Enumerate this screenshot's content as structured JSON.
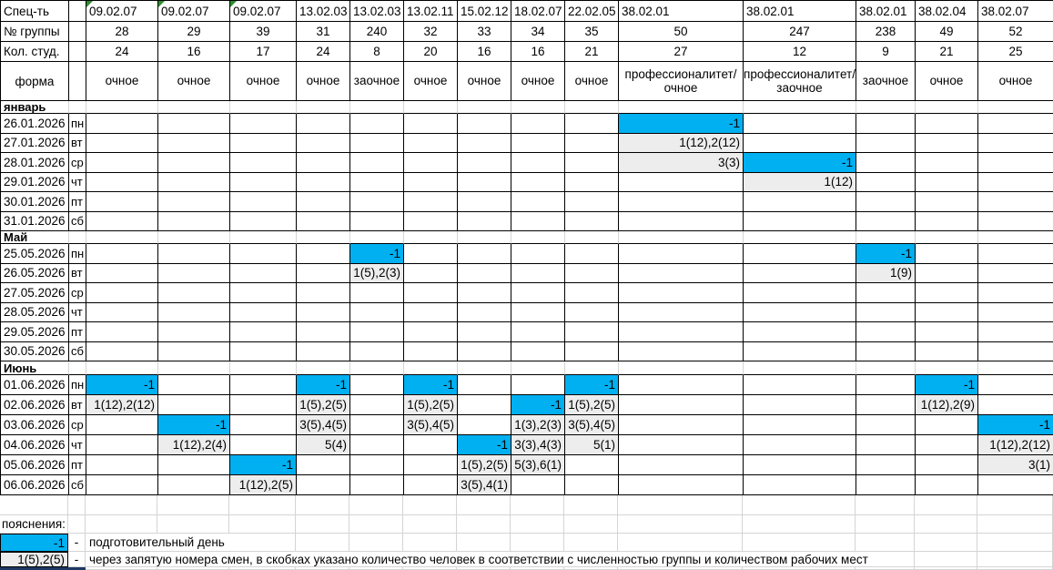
{
  "sheet": {
    "row_labels": {
      "specialty": "Спец-ть",
      "group": "№ группы",
      "students": "Кол. студ.",
      "form": "форма"
    },
    "columns": [
      {
        "code": "09.02.07",
        "group": "28",
        "students": "24",
        "form": "очное",
        "flag": true
      },
      {
        "code": "09.02.07",
        "group": "29",
        "students": "16",
        "form": "очное",
        "flag": true
      },
      {
        "code": "09.02.07",
        "group": "39",
        "students": "17",
        "form": "очное",
        "flag": true
      },
      {
        "code": "13.02.03",
        "group": "31",
        "students": "24",
        "form": "очное",
        "flag": false
      },
      {
        "code": "13.02.03",
        "group": "240",
        "students": "8",
        "form": "заочное",
        "flag": false
      },
      {
        "code": "13.02.11",
        "group": "32",
        "students": "20",
        "form": "очное",
        "flag": false
      },
      {
        "code": "15.02.12",
        "group": "33",
        "students": "16",
        "form": "очное",
        "flag": false
      },
      {
        "code": "18.02.07",
        "group": "34",
        "students": "16",
        "form": "очное",
        "flag": false
      },
      {
        "code": "22.02.05",
        "group": "35",
        "students": "21",
        "form": "очное",
        "flag": false
      },
      {
        "code": "38.02.01",
        "group": "50",
        "students": "27",
        "form": "профессионалитет/очное",
        "flag": false
      },
      {
        "code": "38.02.01",
        "group": "247",
        "students": "12",
        "form": "профессионалитет/заочное",
        "flag": false
      },
      {
        "code": "38.02.01",
        "group": "238",
        "students": "9",
        "form": "заочное",
        "flag": false
      },
      {
        "code": "38.02.04",
        "group": "49",
        "students": "21",
        "form": "очное",
        "flag": false
      },
      {
        "code": "38.02.07",
        "group": "52",
        "students": "25",
        "form": "очное",
        "flag": false
      }
    ],
    "months": [
      {
        "name": "январь",
        "rows": [
          {
            "date": "26.01.2026",
            "day": "пн",
            "cells": {
              "9": {
                "v": "-1",
                "t": "b"
              }
            }
          },
          {
            "date": "27.01.2026",
            "day": "вт",
            "cells": {
              "9": {
                "v": "1(12),2(12)",
                "t": "g"
              }
            }
          },
          {
            "date": "28.01.2026",
            "day": "ср",
            "cells": {
              "9": {
                "v": "3(3)",
                "t": "g"
              },
              "10": {
                "v": "-1",
                "t": "b"
              }
            }
          },
          {
            "date": "29.01.2026",
            "day": "чт",
            "cells": {
              "10": {
                "v": "1(12)",
                "t": "g"
              }
            }
          },
          {
            "date": "30.01.2026",
            "day": "пт",
            "cells": {}
          },
          {
            "date": "31.01.2026",
            "day": "сб",
            "cells": {}
          }
        ]
      },
      {
        "name": "Май",
        "rows": [
          {
            "date": "25.05.2026",
            "day": "пн",
            "cells": {
              "4": {
                "v": "-1",
                "t": "b"
              },
              "11": {
                "v": "-1",
                "t": "b"
              }
            }
          },
          {
            "date": "26.05.2026",
            "day": "вт",
            "cells": {
              "4": {
                "v": "1(5),2(3)",
                "t": "g"
              },
              "11": {
                "v": "1(9)",
                "t": "g"
              }
            }
          },
          {
            "date": "27.05.2026",
            "day": "ср",
            "cells": {}
          },
          {
            "date": "28.05.2026",
            "day": "чт",
            "cells": {}
          },
          {
            "date": "29.05.2026",
            "day": "пт",
            "cells": {}
          },
          {
            "date": "30.05.2026",
            "day": "сб",
            "cells": {}
          }
        ]
      },
      {
        "name": "Июнь",
        "rows": [
          {
            "date": "01.06.2026",
            "day": "пн",
            "cells": {
              "0": {
                "v": "-1",
                "t": "b"
              },
              "3": {
                "v": "-1",
                "t": "b"
              },
              "5": {
                "v": "-1",
                "t": "b"
              },
              "8": {
                "v": "-1",
                "t": "b"
              },
              "12": {
                "v": "-1",
                "t": "b"
              }
            }
          },
          {
            "date": "02.06.2026",
            "day": "вт",
            "cells": {
              "0": {
                "v": "1(12),2(12)",
                "t": "g"
              },
              "3": {
                "v": "1(5),2(5)",
                "t": "g"
              },
              "5": {
                "v": "1(5),2(5)",
                "t": "g"
              },
              "7": {
                "v": "-1",
                "t": "b"
              },
              "8": {
                "v": "1(5),2(5)",
                "t": "g"
              },
              "12": {
                "v": "1(12),2(9)",
                "t": "g"
              }
            }
          },
          {
            "date": "03.06.2026",
            "day": "ср",
            "cells": {
              "1": {
                "v": "-1",
                "t": "b"
              },
              "3": {
                "v": "3(5),4(5)",
                "t": "g"
              },
              "5": {
                "v": "3(5),4(5)",
                "t": "g"
              },
              "7": {
                "v": "1(3),2(3)",
                "t": "g"
              },
              "8": {
                "v": "3(5),4(5)",
                "t": "g"
              },
              "13": {
                "v": "-1",
                "t": "b"
              }
            }
          },
          {
            "date": "04.06.2026",
            "day": "чт",
            "cells": {
              "1": {
                "v": "1(12),2(4)",
                "t": "g"
              },
              "3": {
                "v": "5(4)",
                "t": "g"
              },
              "6": {
                "v": "-1",
                "t": "b"
              },
              "7": {
                "v": "3(3),4(3)",
                "t": "g"
              },
              "8": {
                "v": "5(1)",
                "t": "g"
              },
              "13": {
                "v": "1(12),2(12)",
                "t": "g"
              }
            }
          },
          {
            "date": "05.06.2026",
            "day": "пт",
            "cells": {
              "2": {
                "v": "-1",
                "t": "b"
              },
              "6": {
                "v": "1(5),2(5)",
                "t": "g"
              },
              "7": {
                "v": "5(3),6(1)",
                "t": "g"
              },
              "13": {
                "v": "3(1)",
                "t": "g"
              }
            }
          },
          {
            "date": "06.06.2026",
            "day": "сб",
            "cells": {
              "2": {
                "v": "1(12),2(5)",
                "t": "g"
              },
              "6": {
                "v": "3(5),4(1)",
                "t": "g"
              }
            }
          }
        ]
      }
    ]
  },
  "legend": {
    "title": "пояснения:",
    "items": [
      {
        "sample": "-1",
        "style": "blue",
        "dash": "-",
        "text": "подготовительный день"
      },
      {
        "sample": "1(5),2(5)",
        "style": "gray",
        "dash": "-",
        "text": "через запятую номера смен, в скобках указано количество человек в соответствии с численностью группы и количеством рабочих мест"
      }
    ]
  },
  "colors": {
    "prep_day": "#00B0F0",
    "shift_cell": "#EDEDED",
    "dark_partial": "#1F3864",
    "gridline": "#D4D4D4",
    "table_border": "#000000",
    "flag_green": "#2E8B2E"
  }
}
